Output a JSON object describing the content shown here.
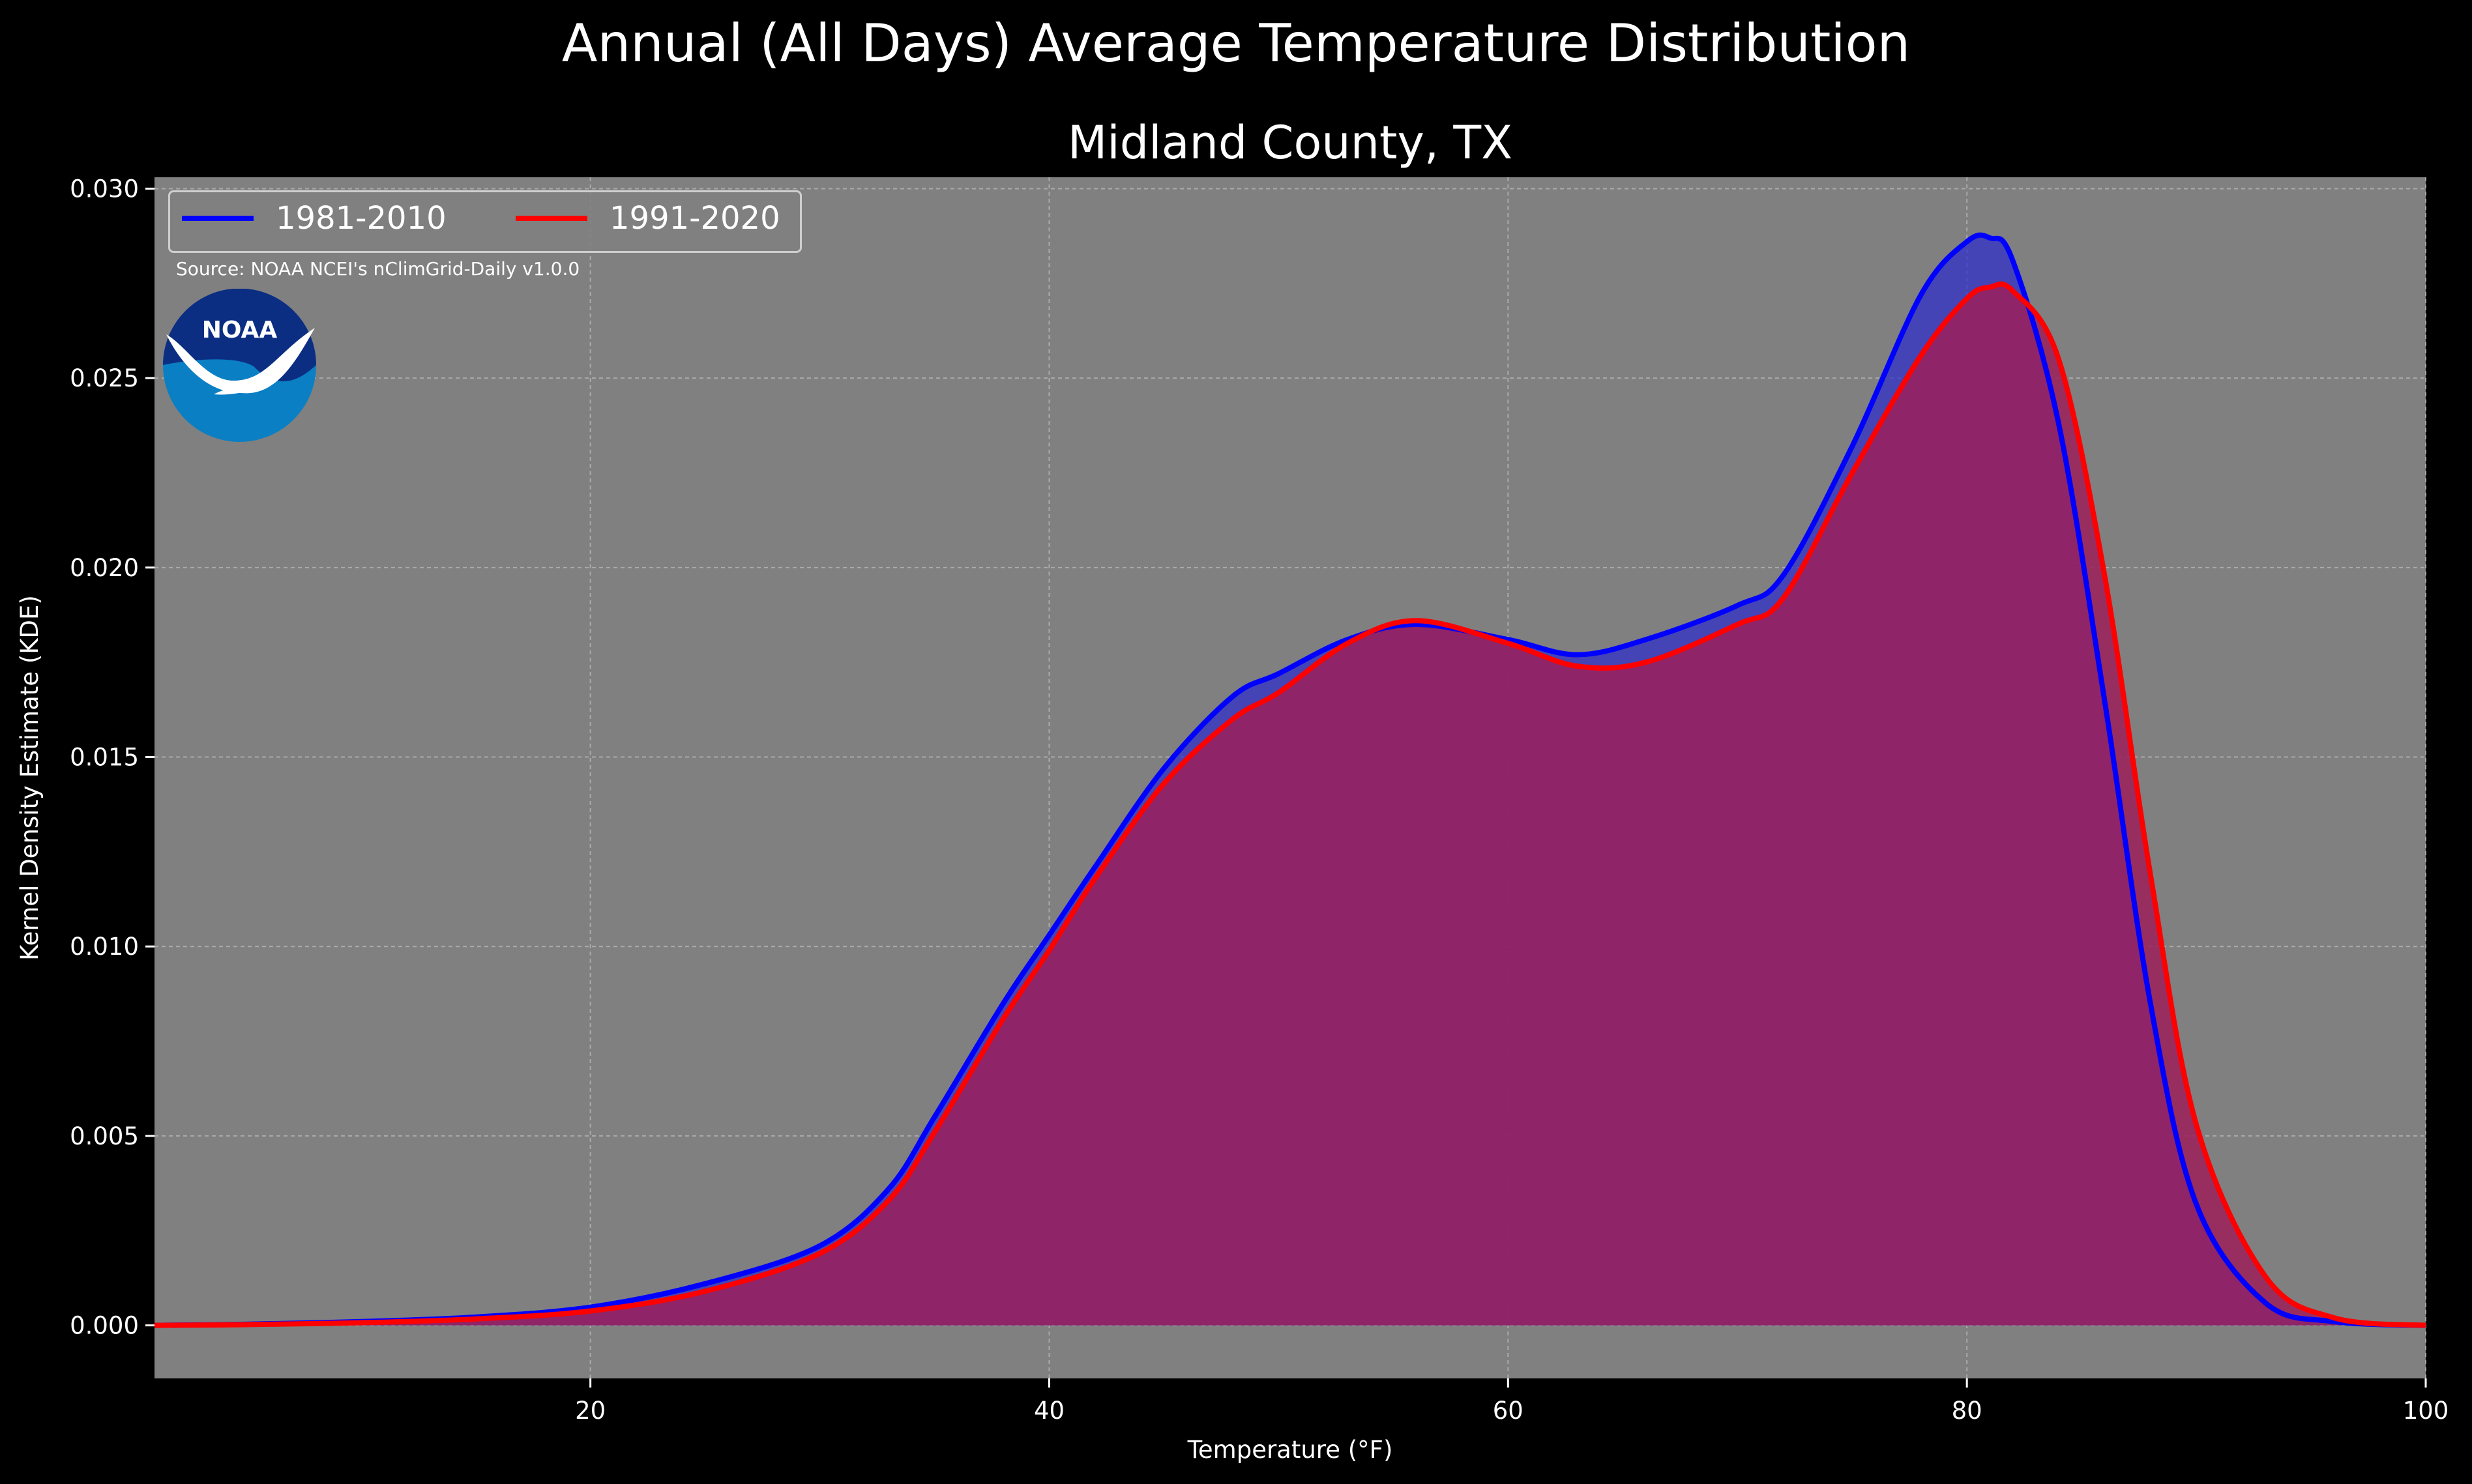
{
  "suptitle": "Annual (All Days) Average Temperature Distribution",
  "source_note": "Source: NOAA NCEI's nClimGrid-Daily v1.0.0",
  "logo": {
    "text": "NOAA",
    "icon": "noaa-logo"
  },
  "colors": {
    "background": "#000000",
    "plot_bg": "#808080",
    "series_1981": "#0000ff",
    "series_1991": "#ff0000",
    "fill_1981": "#3030c8",
    "fill_1991": "#9c1e5a"
  },
  "chart_data": {
    "type": "area",
    "title": "Midland County, TX",
    "xlabel": "Temperature (°F)",
    "ylabel": "Kernel Density Estimate (KDE)",
    "xlim": [
      1,
      100
    ],
    "ylim": [
      -0.0014,
      0.0303
    ],
    "xticks": [
      20,
      40,
      60,
      80,
      100
    ],
    "xtick_labels": [
      "20",
      "40",
      "60",
      "80",
      "100"
    ],
    "yticks": [
      0.0,
      0.005,
      0.01,
      0.015,
      0.02,
      0.025,
      0.03
    ],
    "ytick_labels": [
      "0.000",
      "0.005",
      "0.010",
      "0.015",
      "0.020",
      "0.025",
      "0.030"
    ],
    "grid": true,
    "legend_position": "top-left",
    "series": [
      {
        "name": "1981-2010",
        "color": "#0000ff",
        "x": [
          1,
          5,
          10,
          15,
          20,
          25,
          30,
          33,
          35,
          38,
          40,
          42,
          45,
          48,
          50,
          53,
          56,
          60,
          63,
          66,
          70,
          72,
          75,
          78,
          80,
          81,
          82,
          84,
          86,
          88,
          90,
          93,
          96,
          100
        ],
        "y": [
          0.0,
          3e-05,
          0.0001,
          0.00022,
          0.00048,
          0.0011,
          0.0021,
          0.0036,
          0.0055,
          0.0085,
          0.0103,
          0.0121,
          0.0147,
          0.0166,
          0.0172,
          0.0181,
          0.0185,
          0.0181,
          0.0177,
          0.0181,
          0.019,
          0.0198,
          0.0232,
          0.0272,
          0.0286,
          0.0287,
          0.0281,
          0.0238,
          0.0165,
          0.0085,
          0.0032,
          0.0006,
          0.0001,
          0.0
        ]
      },
      {
        "name": "1991-2020",
        "color": "#ff0000",
        "x": [
          1,
          5,
          10,
          15,
          20,
          25,
          30,
          33,
          35,
          38,
          40,
          42,
          45,
          48,
          50,
          53,
          56,
          60,
          63,
          66,
          70,
          72,
          75,
          78,
          80,
          81,
          82,
          84,
          86,
          88,
          90,
          93,
          96,
          100
        ],
        "y": [
          0.0,
          2e-05,
          7e-05,
          0.00017,
          0.00038,
          0.0009,
          0.0019,
          0.0033,
          0.0051,
          0.0081,
          0.0099,
          0.0118,
          0.0143,
          0.016,
          0.0167,
          0.018,
          0.0186,
          0.018,
          0.0174,
          0.0175,
          0.0185,
          0.0192,
          0.0225,
          0.0256,
          0.0271,
          0.0274,
          0.0273,
          0.0255,
          0.0198,
          0.0119,
          0.0053,
          0.0013,
          0.0002,
          0.0
        ]
      }
    ]
  }
}
